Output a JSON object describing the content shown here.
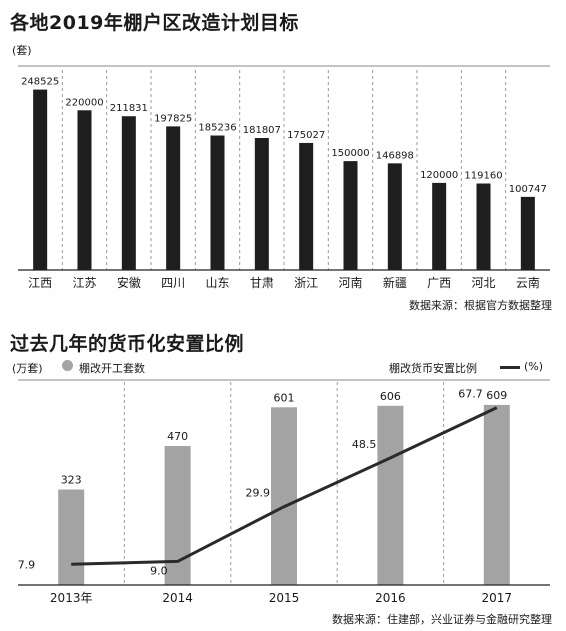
{
  "chart_data": [
    {
      "type": "bar",
      "title": "各地2019年棚户区改造计划目标",
      "unit_label": "(套)",
      "categories": [
        "江西",
        "江苏",
        "安徽",
        "四川",
        "山东",
        "甘肃",
        "浙江",
        "河南",
        "新疆",
        "广西",
        "河北",
        "云南"
      ],
      "values": [
        248525,
        220000,
        211831,
        197825,
        185236,
        181807,
        175027,
        150000,
        146898,
        120000,
        119160,
        100747
      ],
      "ylim": [
        0,
        270000
      ],
      "source": "数据来源：根据官方数据整理",
      "colors": {
        "bar": "#1e1e1e"
      }
    },
    {
      "type": "bar+line",
      "title": "过去几年的货币化安置比例",
      "left_unit": "(万套)",
      "right_unit": "(%)",
      "categories": [
        "2013年",
        "2014",
        "2015",
        "2016",
        "2017"
      ],
      "series": [
        {
          "name": "棚改开工套数",
          "type": "bar",
          "values": [
            323,
            470,
            601,
            606,
            609
          ]
        },
        {
          "name": "棚改货币安置比例",
          "type": "line",
          "values": [
            7.9,
            9.0,
            29.9,
            48.5,
            67.7
          ]
        }
      ],
      "bar_ylim": [
        0,
        700
      ],
      "line_ylim": [
        0,
        79
      ],
      "source": "数据来源：住建部，兴业证券与金融研究整理",
      "colors": {
        "bar": "#a3a3a3",
        "line": "#2a2a2a"
      }
    }
  ]
}
